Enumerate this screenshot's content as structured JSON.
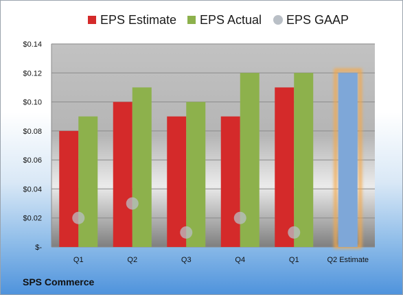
{
  "company_name": "SPS Commerce",
  "colors": {
    "estimate": "#d42a2a",
    "actual": "#8db14c",
    "gaap": "#b9bfc6",
    "q2_estimate_bar": "#7ea7d8",
    "q2_estimate_glow": "#f5a94a"
  },
  "chart_data": {
    "type": "bar",
    "title": "",
    "xlabel": "",
    "ylabel": "",
    "ylim": [
      0,
      0.14
    ],
    "yticks": [
      "$-",
      "$0.02",
      "$0.04",
      "$0.06",
      "$0.08",
      "$0.10",
      "$0.12",
      "$0.14"
    ],
    "categories": [
      "Q1",
      "Q2",
      "Q3",
      "Q4",
      "Q1",
      "Q2 Estimate"
    ],
    "legend": [
      "EPS Estimate",
      "EPS Actual",
      "EPS GAAP"
    ],
    "legend_position": "top",
    "grid": true,
    "series": [
      {
        "name": "EPS Estimate",
        "type": "bar",
        "values": [
          0.08,
          0.1,
          0.09,
          0.09,
          0.11,
          null
        ]
      },
      {
        "name": "EPS Actual",
        "type": "bar",
        "values": [
          0.09,
          0.11,
          0.1,
          0.12,
          0.12,
          0.12
        ]
      },
      {
        "name": "EPS GAAP",
        "type": "scatter",
        "values": [
          0.02,
          0.03,
          0.01,
          0.02,
          0.01,
          null
        ]
      }
    ]
  }
}
